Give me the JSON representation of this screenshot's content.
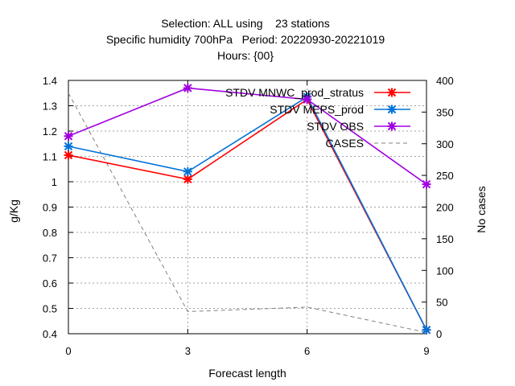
{
  "chart_data": {
    "type": "line",
    "title_lines": [
      "Selection: ALL using    23 stations",
      "Specific humidity 700hPa   Period: 20220930-20221019",
      "Hours: {00}"
    ],
    "xlabel": "Forecast length",
    "ylabel": "g/Kg",
    "y2label": "No cases",
    "x": [
      0,
      3,
      6,
      9
    ],
    "xlim": [
      0,
      9
    ],
    "xticks": [
      "0",
      "3",
      "6",
      "9"
    ],
    "ylim": [
      0.4,
      1.4
    ],
    "yticks": [
      "0.4",
      "0.5",
      "0.6",
      "0.7",
      "0.8",
      "0.9",
      "1",
      "1.1",
      "1.2",
      "1.3",
      "1.4"
    ],
    "y2lim": [
      0,
      400
    ],
    "y2ticks": [
      "0",
      "50",
      "100",
      "150",
      "200",
      "250",
      "300",
      "350",
      "400"
    ],
    "grid": true,
    "legend_position": "top-right",
    "series": [
      {
        "name": "STDV MNWC_prod_stratus",
        "axis": "y",
        "color": "#ff0000",
        "values": [
          1.105,
          1.01,
          1.325,
          0.415
        ]
      },
      {
        "name": "STDV MEPS_prod",
        "axis": "y",
        "color": "#0072d8",
        "values": [
          1.14,
          1.04,
          1.335,
          0.415
        ]
      },
      {
        "name": "STDV OBS",
        "axis": "y",
        "color": "#a000e0",
        "values": [
          1.18,
          1.37,
          1.325,
          0.99
        ]
      },
      {
        "name": "CASES",
        "axis": "y2",
        "color": "#808080",
        "dashed": true,
        "values": [
          380,
          35,
          42,
          2
        ]
      }
    ]
  }
}
